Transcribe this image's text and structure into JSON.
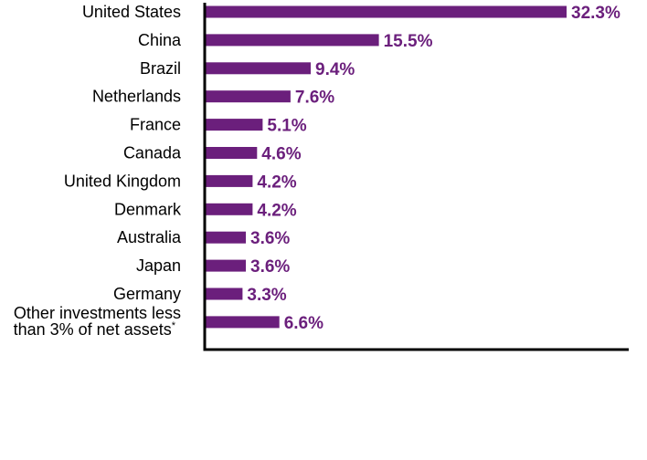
{
  "chart_data": {
    "type": "bar",
    "orientation": "horizontal",
    "categories": [
      "United States",
      "China",
      "Brazil",
      "Netherlands",
      "France",
      "Canada",
      "United Kingdom",
      "Denmark",
      "Australia",
      "Japan",
      "Germany",
      "Other investments less than 3% of net assets*"
    ],
    "category_lines": {
      "last_line1": "Other investments less",
      "last_line2": "than 3% of net assets",
      "last_sup": "*"
    },
    "values": [
      32.3,
      15.5,
      9.4,
      7.6,
      5.1,
      4.6,
      4.2,
      4.2,
      3.6,
      3.6,
      3.3,
      6.6
    ],
    "value_labels": [
      "32.3%",
      "15.5%",
      "9.4%",
      "7.6%",
      "5.1%",
      "4.6%",
      "4.2%",
      "4.2%",
      "3.6%",
      "3.6%",
      "3.3%",
      "6.6%"
    ],
    "title": "",
    "xlabel": "",
    "ylabel": "",
    "xlim": [
      0,
      38
    ],
    "grid": false,
    "legend": "none",
    "bar_color": "#6b1f7c",
    "label_color": "#6b1f7c",
    "axis_color": "#000000"
  }
}
